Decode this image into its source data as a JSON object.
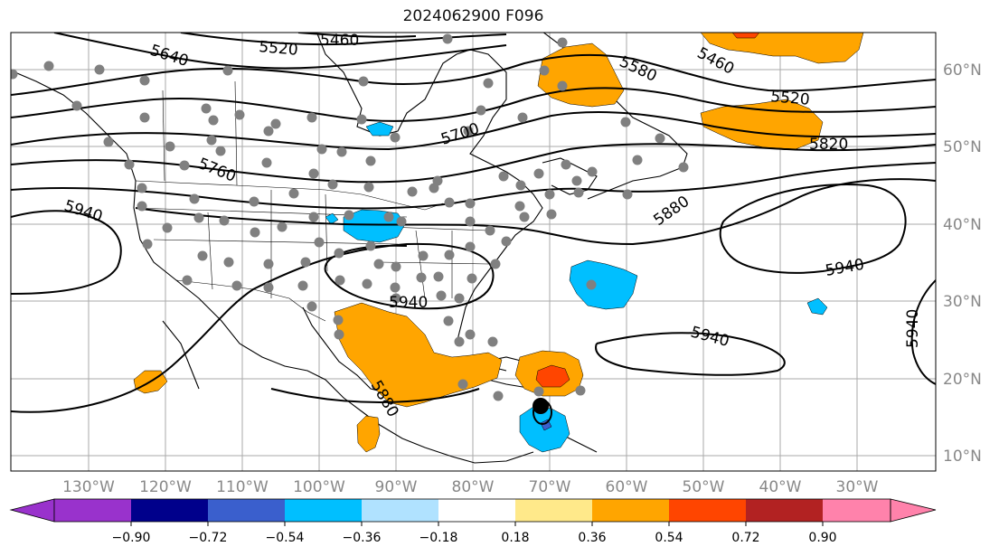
{
  "title": "2024062900 F096",
  "latitude_labels": [
    "60°N",
    "50°N",
    "40°N",
    "30°N",
    "20°N",
    "10°N"
  ],
  "longitude_labels": [
    "130°W",
    "120°W",
    "110°W",
    "100°W",
    "90°W",
    "80°W",
    "70°W",
    "60°W",
    "50°W",
    "40°W",
    "30°W"
  ],
  "contour_labels": [
    "5640",
    "5520",
    "5460",
    "5580",
    "5460",
    "5520",
    "5700",
    "5760",
    "5820",
    "5880",
    "5940",
    "5940",
    "5940",
    "5940",
    "5940",
    "5880"
  ],
  "colorbar": {
    "colors": [
      "#9932CC",
      "#00008B",
      "#3A5FCD",
      "#00BFFF",
      "#B0E2FF",
      "#FFFFFF",
      "#FFFFFF",
      "#FFE98A",
      "#FFA500",
      "#FF4500",
      "#B22222",
      "#FF82AB"
    ],
    "tick_labels": [
      "−0.90",
      "−0.72",
      "−0.54",
      "−0.36",
      "−0.18",
      "0.18",
      "0.36",
      "0.54",
      "0.72",
      "0.90"
    ],
    "levels": [
      -0.9,
      -0.72,
      -0.54,
      -0.36,
      -0.18,
      0.18,
      0.36,
      0.54,
      0.72,
      0.9
    ]
  },
  "colors": {
    "positive_anomaly": "#FFA500",
    "strong_positive": "#FF4500",
    "negative_anomaly": "#00BFFF",
    "station_marker": "#808080",
    "storm_marker": "#000000"
  }
}
